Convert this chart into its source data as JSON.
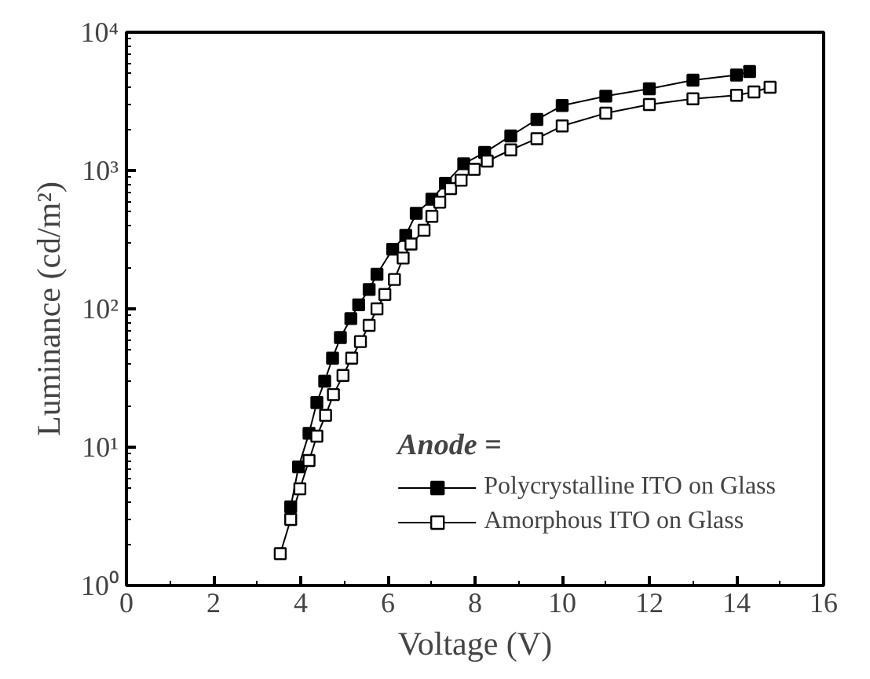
{
  "chart_data": {
    "type": "line",
    "xlabel": "Voltage (V)",
    "ylabel": "Luminance (cd/m²)",
    "legend_title": "Anode =",
    "log": "y",
    "grid": false,
    "legend": "bottom right",
    "marker": "square",
    "line_style": "solid",
    "xlim": [
      0,
      16
    ],
    "xticks": [
      0,
      2,
      4,
      6,
      8,
      10,
      12,
      14,
      16
    ],
    "ylim": [
      1,
      10000
    ],
    "yticks": [
      {
        "value": 1,
        "label": "10⁰"
      },
      {
        "value": 10,
        "label": "10¹"
      },
      {
        "value": 100,
        "label": "10²"
      },
      {
        "value": 1000,
        "label": "10³"
      },
      {
        "value": 10000,
        "label": "10⁴"
      }
    ],
    "series": [
      {
        "name": "Polycrystalline ITO on Glass",
        "color": "#000000",
        "x": [
          3.77,
          3.95,
          4.19,
          4.37,
          4.55,
          4.73,
          4.91,
          5.15,
          5.33,
          5.57,
          5.75,
          6.11,
          6.41,
          6.65,
          7.01,
          7.32,
          7.74,
          8.22,
          8.82,
          9.42,
          10,
          11,
          12,
          13,
          14,
          14.3
        ],
        "values": [
          3.7,
          7.2,
          12.6,
          21,
          30,
          44,
          62,
          85,
          107,
          138,
          178,
          270,
          340,
          490,
          620,
          810,
          1120,
          1350,
          1780,
          2340,
          2950,
          3450,
          3900,
          4500,
          4900,
          5200
        ]
      },
      {
        "name": "Amorphous ITO on Glass",
        "color": "#ffffff",
        "x": [
          3.53,
          3.77,
          3.98,
          4.19,
          4.37,
          4.57,
          4.75,
          4.97,
          5.17,
          5.37,
          5.57,
          5.75,
          5.93,
          6.15,
          6.35,
          6.53,
          6.83,
          7.01,
          7.19,
          7.44,
          7.68,
          7.98,
          8.28,
          8.82,
          9.42,
          10,
          11,
          12,
          13,
          14,
          14.4,
          14.77
        ],
        "values": [
          1.7,
          3.0,
          5.0,
          8,
          12,
          17,
          24,
          33,
          44,
          58,
          76,
          100,
          127,
          163,
          233,
          294,
          370,
          467,
          590,
          740,
          850,
          1020,
          1170,
          1410,
          1700,
          2100,
          2600,
          3000,
          3300,
          3500,
          3700,
          4000
        ]
      }
    ]
  }
}
